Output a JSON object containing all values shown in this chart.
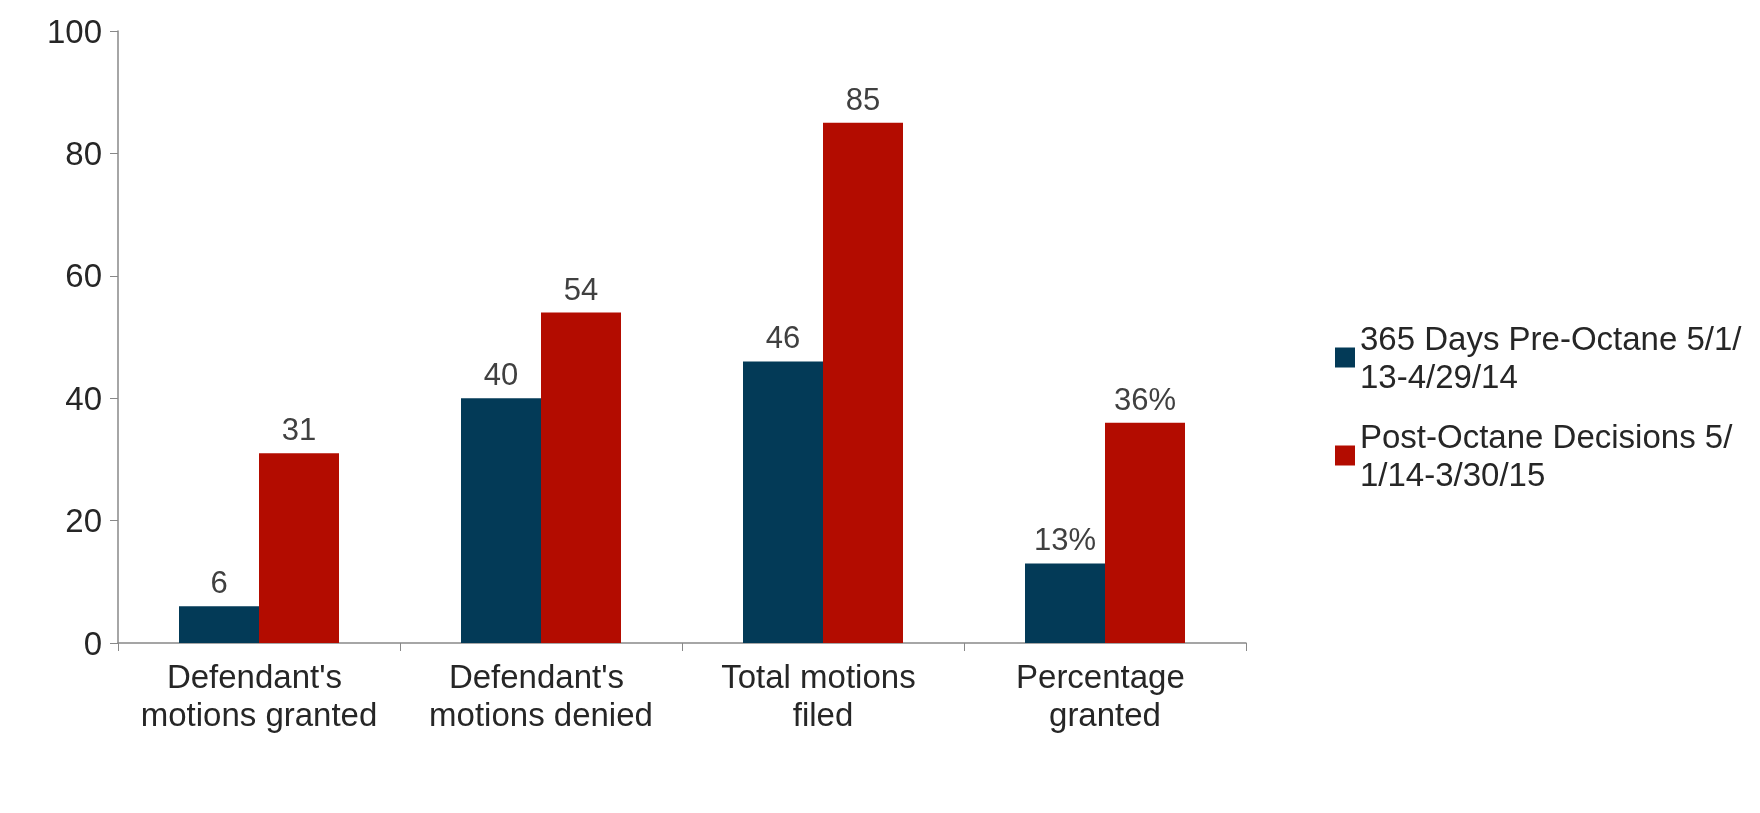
{
  "chart_data": {
    "type": "bar",
    "categories": [
      "Defendant's motions granted",
      "Defendant's motions denied",
      "Total motions filed",
      "Percentage granted"
    ],
    "series": [
      {
        "name": "365 Days Pre-Octane 5/1/13-4/29/14",
        "color": "#033a57",
        "values": [
          6,
          40,
          46,
          13
        ],
        "value_labels": [
          "6",
          "40",
          "46",
          "13%"
        ]
      },
      {
        "name": "Post-Octane Decisions 5/1/14-3/30/15",
        "color": "#b30c00",
        "values": [
          31,
          54,
          85,
          36
        ],
        "value_labels": [
          "31",
          "54",
          "85",
          "36%"
        ]
      }
    ],
    "ylim": [
      0,
      100
    ],
    "yticks": [
      0,
      20,
      40,
      60,
      80,
      100
    ],
    "grid": false,
    "legend": "right"
  }
}
